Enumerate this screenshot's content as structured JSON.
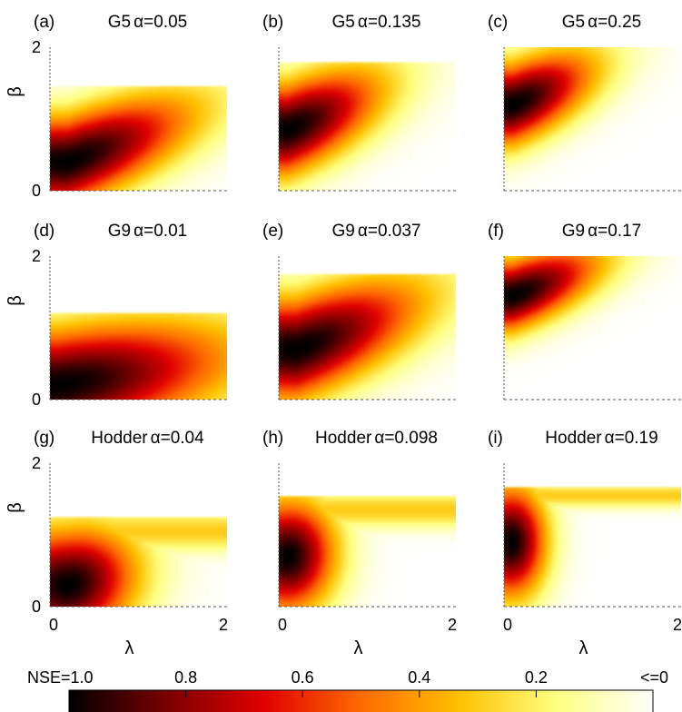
{
  "chart_data": [
    {
      "type": "heatmap",
      "label": "(a)",
      "model": "G5",
      "alpha_text": "α=0.05",
      "ylabel": "β",
      "xlabel": "",
      "xlim": [
        0,
        2
      ],
      "ylim": [
        0,
        2
      ],
      "yticks": [
        "0",
        "2"
      ],
      "xticks": [],
      "blob": {
        "lambda": 0.2,
        "beta": 0.4,
        "s_lambda": 1.0,
        "s_beta": 0.45,
        "tail": 0.45,
        "beta_max": 1.45
      }
    },
    {
      "type": "heatmap",
      "label": "(b)",
      "model": "G5",
      "alpha_text": "α=0.135",
      "ylabel": "",
      "xlabel": "",
      "xlim": [
        0,
        2
      ],
      "ylim": [
        0,
        2
      ],
      "yticks": [],
      "xticks": [],
      "blob": {
        "lambda": 0.1,
        "beta": 0.85,
        "s_lambda": 0.75,
        "s_beta": 0.45,
        "tail": 0.5,
        "beta_max": 1.8
      }
    },
    {
      "type": "heatmap",
      "label": "(c)",
      "model": "G5",
      "alpha_text": "α=0.25",
      "ylabel": "",
      "xlabel": "",
      "xlim": [
        0,
        2
      ],
      "ylim": [
        0,
        2
      ],
      "yticks": [],
      "xticks": [],
      "blob": {
        "lambda": 0.1,
        "beta": 1.2,
        "s_lambda": 0.65,
        "s_beta": 0.4,
        "tail": 0.5,
        "beta_max": 2.0
      }
    },
    {
      "type": "heatmap",
      "label": "(d)",
      "model": "G9",
      "alpha_text": "α=0.01",
      "ylabel": "β",
      "xlabel": "",
      "xlim": [
        0,
        2
      ],
      "ylim": [
        0,
        2
      ],
      "yticks": [
        "0",
        "2"
      ],
      "xticks": [],
      "blob": {
        "lambda": 0.1,
        "beta": 0.2,
        "s_lambda": 1.4,
        "s_beta": 0.55,
        "tail": 0.2,
        "beta_max": 1.2
      }
    },
    {
      "type": "heatmap",
      "label": "(e)",
      "model": "G9",
      "alpha_text": "α=0.037",
      "ylabel": "",
      "xlabel": "",
      "xlim": [
        0,
        2
      ],
      "ylim": [
        0,
        2
      ],
      "yticks": [],
      "xticks": [],
      "blob": {
        "lambda": 0.2,
        "beta": 0.7,
        "s_lambda": 1.0,
        "s_beta": 0.5,
        "tail": 0.45,
        "beta_max": 1.75
      }
    },
    {
      "type": "heatmap",
      "label": "(f)",
      "model": "G9",
      "alpha_text": "α=0.17",
      "ylabel": "",
      "xlabel": "",
      "xlim": [
        0,
        2
      ],
      "ylim": [
        0,
        2
      ],
      "yticks": [],
      "xticks": [],
      "blob": {
        "lambda": 0.1,
        "beta": 1.45,
        "s_lambda": 0.7,
        "s_beta": 0.35,
        "tail": 0.45,
        "beta_max": 2.0
      }
    },
    {
      "type": "heatmap",
      "label": "(g)",
      "model": "Hodder",
      "alpha_text": "α=0.04",
      "ylabel": "β",
      "xlabel": "λ",
      "xlim": [
        0,
        2
      ],
      "ylim": [
        0,
        2
      ],
      "yticks": [
        "0",
        "2"
      ],
      "xticks": [
        "0",
        "2"
      ],
      "blob": {
        "lambda": 0.2,
        "beta": 0.3,
        "s_lambda": 0.55,
        "s_beta": 0.55,
        "tail": 0.2,
        "beta_max": 1.25,
        "band": {
          "beta": 1.05,
          "w": 0.2,
          "v": 0.3
        }
      }
    },
    {
      "type": "heatmap",
      "label": "(h)",
      "model": "Hodder",
      "alpha_text": "α=0.098",
      "ylabel": "",
      "xlabel": "λ",
      "xlim": [
        0,
        2
      ],
      "ylim": [
        0,
        2
      ],
      "yticks": [],
      "xticks": [
        "0",
        "2"
      ],
      "blob": {
        "lambda": 0.1,
        "beta": 0.7,
        "s_lambda": 0.38,
        "s_beta": 0.55,
        "tail": 0.1,
        "beta_max": 1.55,
        "band": {
          "beta": 1.35,
          "w": 0.18,
          "v": 0.3
        }
      }
    },
    {
      "type": "heatmap",
      "label": "(i)",
      "model": "Hodder",
      "alpha_text": "α=0.19",
      "ylabel": "",
      "xlabel": "λ",
      "xlim": [
        0,
        2
      ],
      "ylim": [
        0,
        2
      ],
      "yticks": [],
      "xticks": [
        "0",
        "2"
      ],
      "blob": {
        "lambda": 0.08,
        "beta": 0.9,
        "s_lambda": 0.28,
        "s_beta": 0.55,
        "tail": 0.05,
        "beta_max": 1.65,
        "band": {
          "beta": 1.55,
          "w": 0.12,
          "v": 0.3
        }
      }
    }
  ],
  "colorbar": {
    "labels": [
      "NSE=1.0",
      "0.8",
      "0.6",
      "0.4",
      "0.2",
      "<=0"
    ],
    "values": [
      1.0,
      0.8,
      0.6,
      0.4,
      0.2,
      0.0
    ],
    "colormap": [
      "#000000",
      "#7a0000",
      "#e00000",
      "#ff6a00",
      "#ffc000",
      "#ffff80",
      "#ffffff"
    ]
  }
}
